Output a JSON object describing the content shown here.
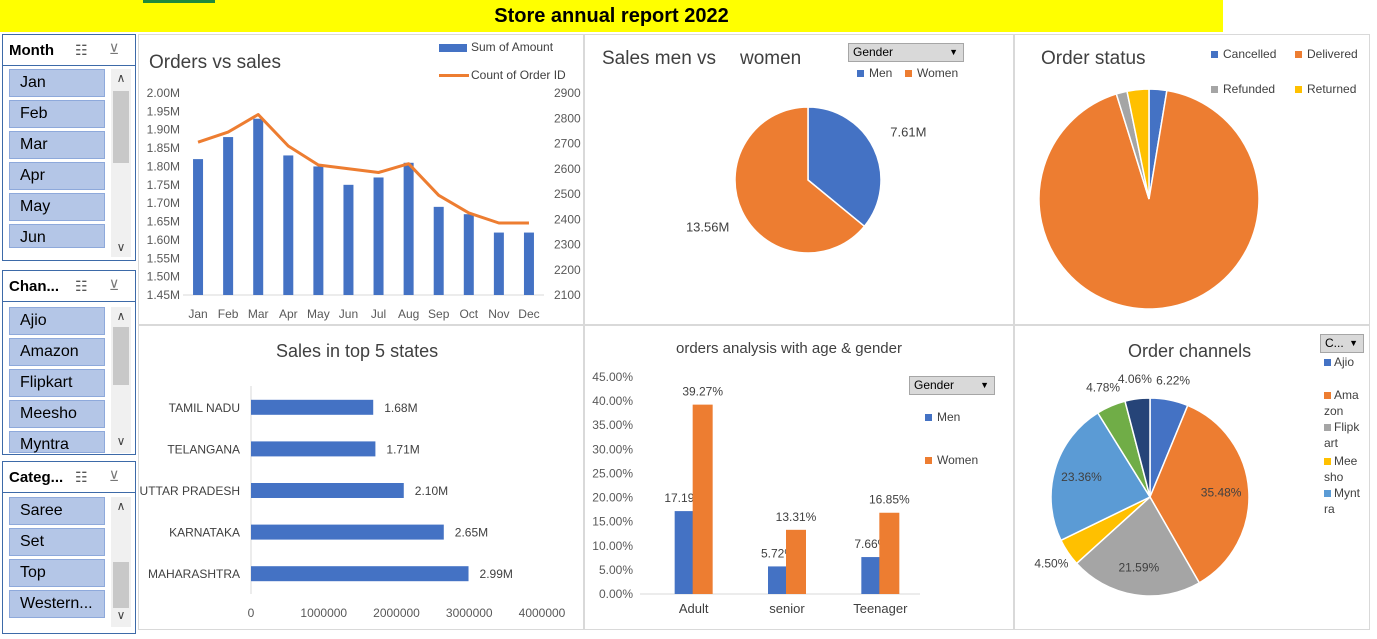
{
  "report_title": "Store annual report 2022",
  "colors": {
    "blue": "#4472c4",
    "orange": "#ed7d31",
    "gray": "#a5a5a5",
    "yellow": "#ffc000",
    "lightblue": "#5b9bd5",
    "green": "#70ad47",
    "navy": "#264478",
    "accent_bar": "#ffff00"
  },
  "slicers": {
    "month": {
      "title": "Month",
      "items": [
        "Jan",
        "Feb",
        "Mar",
        "Apr",
        "May",
        "Jun"
      ]
    },
    "channel": {
      "title": "Chan...",
      "items": [
        "Ajio",
        "Amazon",
        "Flipkart",
        "Meesho",
        "Myntra"
      ]
    },
    "category": {
      "title": "Categ...",
      "items": [
        "Saree",
        "Set",
        "Top",
        "Western..."
      ]
    },
    "icons": {
      "multi_select": "multi-select-icon",
      "clear_filter": "clear-filter-icon"
    }
  },
  "orders_vs_sales": {
    "title": "Orders vs  sales",
    "legend_bar": "Sum of Amount",
    "legend_line": "Count of Order ID",
    "chart_data": {
      "type": "bar",
      "categories": [
        "Jan",
        "Feb",
        "Mar",
        "Apr",
        "May",
        "Jun",
        "Jul",
        "Aug",
        "Sep",
        "Oct",
        "Nov",
        "Dec"
      ],
      "series": [
        {
          "name": "Sum of Amount",
          "values": [
            1.82,
            1.88,
            1.93,
            1.83,
            1.8,
            1.75,
            1.77,
            1.81,
            1.69,
            1.67,
            1.62,
            1.62
          ],
          "axis": "left"
        },
        {
          "name": "Count of Order ID",
          "values": [
            2705,
            2745,
            2815,
            2690,
            2615,
            2600,
            2585,
            2620,
            2495,
            2425,
            2385,
            2385
          ],
          "axis": "right",
          "type": "line"
        }
      ],
      "ylim": [
        1.45,
        2.0
      ],
      "y_ticks": [
        "2.00M",
        "1.95M",
        "1.90M",
        "1.85M",
        "1.80M",
        "1.75M",
        "1.70M",
        "1.65M",
        "1.60M",
        "1.55M",
        "1.50M",
        "1.45M"
      ],
      "y2lim": [
        2100,
        2900
      ],
      "y2_ticks": [
        "2900",
        "2800",
        "2700",
        "2600",
        "2500",
        "2400",
        "2300",
        "2200",
        "2100"
      ]
    }
  },
  "sales_gender": {
    "title_a": "Sales men vs",
    "title_b": "women",
    "filter_label": "Gender",
    "legend": [
      "Men",
      "Women"
    ],
    "chart_data": {
      "type": "pie",
      "slices": [
        {
          "name": "Men",
          "value": 7.61,
          "label": "7.61M"
        },
        {
          "name": "Women",
          "value": 13.56,
          "label": "13.56M"
        }
      ]
    }
  },
  "order_status": {
    "title": "Order status",
    "legend": [
      "Cancelled",
      "Delivered",
      "Refunded",
      "Returned"
    ],
    "chart_data": {
      "type": "pie",
      "slices": [
        {
          "name": "Cancelled",
          "value": 2.6
        },
        {
          "name": "Delivered",
          "value": 92.6
        },
        {
          "name": "Refunded",
          "value": 1.6
        },
        {
          "name": "Returned",
          "value": 3.2
        }
      ]
    }
  },
  "top_states": {
    "title": "Sales in top 5 states",
    "chart_data": {
      "type": "bar",
      "orientation": "horizontal",
      "categories": [
        "TAMIL NADU",
        "TELANGANA",
        "UTTAR PRADESH",
        "KARNATAKA",
        "MAHARASHTRA"
      ],
      "values": [
        1680000,
        1710000,
        2100000,
        2650000,
        2990000
      ],
      "labels": [
        "1.68M",
        "1.71M",
        "2.10M",
        "2.65M",
        "2.99M"
      ],
      "xlim": [
        0,
        4000000
      ],
      "x_ticks": [
        "0",
        "1000000",
        "2000000",
        "3000000",
        "4000000"
      ]
    }
  },
  "age_gender": {
    "title": "orders analysis with age & gender",
    "filter_label": "Gender",
    "legend": [
      "Men",
      "Women"
    ],
    "chart_data": {
      "type": "bar",
      "categories": [
        "Adult",
        "senior",
        "Teenager"
      ],
      "series": [
        {
          "name": "Men",
          "values": [
            17.19,
            5.72,
            7.66
          ],
          "labels": [
            "17.19%",
            "5.72%",
            "7.66%"
          ]
        },
        {
          "name": "Women",
          "values": [
            39.27,
            13.31,
            16.85
          ],
          "labels": [
            "39.27%",
            "13.31%",
            "16.85%"
          ]
        }
      ],
      "ylim": [
        0,
        45
      ],
      "y_ticks": [
        "45.00%",
        "40.00%",
        "35.00%",
        "30.00%",
        "25.00%",
        "20.00%",
        "15.00%",
        "10.00%",
        "5.00%",
        "0.00%"
      ]
    }
  },
  "order_channels": {
    "title": "Order channels",
    "filter_label": "C...",
    "legend": [
      "Ajio",
      "Ama zon",
      "Flipk art",
      "Mee sho",
      "Mynt ra"
    ],
    "chart_data": {
      "type": "pie",
      "slices": [
        {
          "name": "Ajio",
          "value": 6.22,
          "label": "6.22%"
        },
        {
          "name": "Amazon",
          "value": 35.48,
          "label": "35.48%"
        },
        {
          "name": "Flipkart",
          "value": 21.59,
          "label": "21.59%"
        },
        {
          "name": "Meesho",
          "value": 4.5,
          "label": "4.50%"
        },
        {
          "name": "Myntra",
          "value": 23.36,
          "label": "23.36%"
        },
        {
          "name": "",
          "value": 4.78,
          "label": "4.78%"
        },
        {
          "name": "",
          "value": 4.06,
          "label": "4.06%"
        }
      ]
    }
  }
}
